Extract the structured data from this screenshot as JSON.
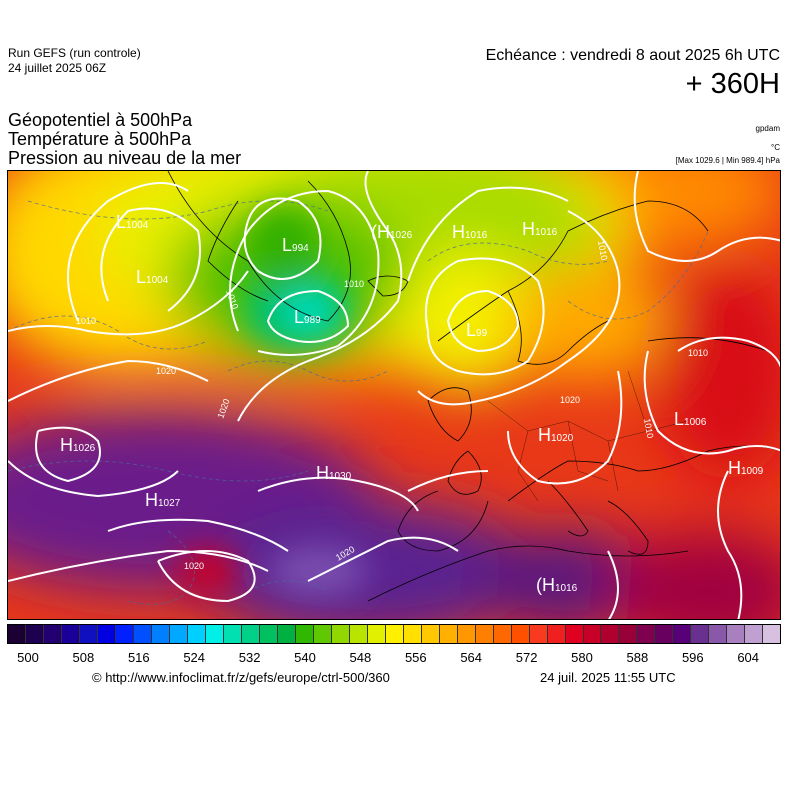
{
  "header": {
    "run_title": "Run GEFS (run controle)",
    "run_date": "24 juillet 2025 06Z",
    "valid_label": "Echéance : vendredi 8 aout 2025 6h UTC",
    "lead_time": "+ 360H",
    "params": [
      "Géopotentiel à 500hPa",
      "Température à 500hPa",
      "Pression au niveau de la mer"
    ],
    "unit_geopotential": "gpdam",
    "unit_temperature": "°C",
    "max_min": "[Max 1029.6 | Min 989.4] hPa"
  },
  "pressure_centers": [
    {
      "type": "L",
      "value": "1004"
    },
    {
      "type": "L",
      "value": "1004"
    },
    {
      "type": "L",
      "value": "994"
    },
    {
      "type": "L",
      "value": "989"
    },
    {
      "type": "H",
      "value": "1026"
    },
    {
      "type": "H",
      "value": "1016"
    },
    {
      "type": "H",
      "value": "1016"
    },
    {
      "type": "L",
      "value": "99"
    },
    {
      "type": "H",
      "value": "1026"
    },
    {
      "type": "H",
      "value": "1030"
    },
    {
      "type": "H",
      "value": "1027"
    },
    {
      "type": "H",
      "value": "1020"
    },
    {
      "type": "L",
      "value": "1006"
    },
    {
      "type": "H",
      "value": "1009"
    },
    {
      "type": "H",
      "value": "1016"
    }
  ],
  "isobar_labels": [
    "1010",
    "1010",
    "1010",
    "1020",
    "1020",
    "1020",
    "1020",
    "1020",
    "1010",
    "1010",
    "1010"
  ],
  "colorbar": {
    "ticks": [
      "500",
      "508",
      "516",
      "524",
      "532",
      "540",
      "548",
      "556",
      "564",
      "572",
      "580",
      "588",
      "596",
      "604"
    ],
    "colors": [
      "#1a0033",
      "#1e0050",
      "#230070",
      "#1a0099",
      "#1010c0",
      "#0000e0",
      "#0020ff",
      "#0050ff",
      "#0080ff",
      "#00a8ff",
      "#00d0ff",
      "#00f0e8",
      "#00e0b0",
      "#00d088",
      "#00c060",
      "#00b040",
      "#30b800",
      "#60c800",
      "#90d800",
      "#b8e400",
      "#e0f000",
      "#fff000",
      "#ffe000",
      "#ffc800",
      "#ffb000",
      "#ff9800",
      "#ff8000",
      "#ff6800",
      "#ff5000",
      "#f83a20",
      "#f02020",
      "#e00020",
      "#c80028",
      "#b00030",
      "#980038",
      "#800050",
      "#680060",
      "#580078",
      "#6a3090",
      "#8a58a8",
      "#a880c0",
      "#c0a0d0",
      "#d8c0e0"
    ]
  },
  "footer": {
    "credit": "© http://www.infoclimat.fr/z/gefs/europe/ctrl-500/360",
    "timestamp": "24 juil. 2025 11:55 UTC"
  }
}
